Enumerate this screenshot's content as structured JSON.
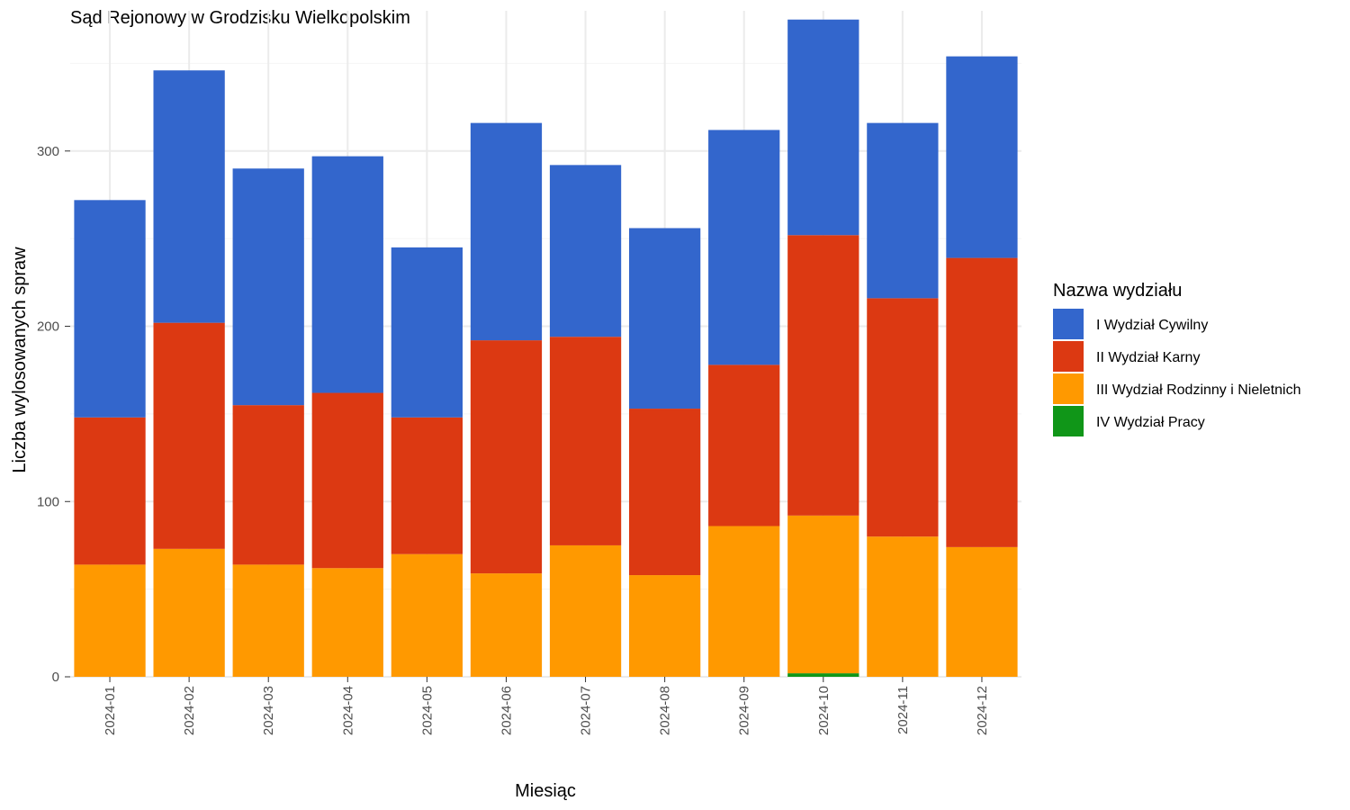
{
  "chart_data": {
    "type": "bar",
    "stacked": true,
    "title": "Sąd Rejonowy w Grodzisku Wielkopolskim",
    "xlabel": "Miesiąc",
    "ylabel": "Liczba wylosowanych spraw",
    "ylim": [
      0,
      380
    ],
    "y_ticks": [
      0,
      100,
      200,
      300
    ],
    "grid": true,
    "legend_position": "right",
    "legend_title": "Nazwa wydziału",
    "categories": [
      "2024-01",
      "2024-02",
      "2024-03",
      "2024-04",
      "2024-05",
      "2024-06",
      "2024-07",
      "2024-08",
      "2024-09",
      "2024-10",
      "2024-11",
      "2024-12"
    ],
    "series": [
      {
        "name": "IV Wydział Pracy",
        "color": "#109618",
        "values": [
          0,
          0,
          0,
          0,
          0,
          0,
          0,
          0,
          0,
          2,
          0,
          0
        ]
      },
      {
        "name": "III Wydział Rodzinny i Nieletnich",
        "color": "#FF9900",
        "values": [
          64,
          73,
          64,
          62,
          70,
          59,
          75,
          58,
          86,
          90,
          80,
          74
        ]
      },
      {
        "name": "II Wydział Karny",
        "color": "#DC3912",
        "values": [
          84,
          129,
          91,
          100,
          78,
          133,
          119,
          95,
          92,
          160,
          136,
          165
        ]
      },
      {
        "name": "I Wydział Cywilny",
        "color": "#3366CC",
        "values": [
          124,
          144,
          135,
          135,
          97,
          124,
          98,
          103,
          134,
          123,
          100,
          115
        ]
      }
    ],
    "legend_order": [
      "I Wydział Cywilny",
      "II Wydział Karny",
      "III Wydział Rodzinny i Nieletnich",
      "IV Wydział Pracy"
    ]
  }
}
